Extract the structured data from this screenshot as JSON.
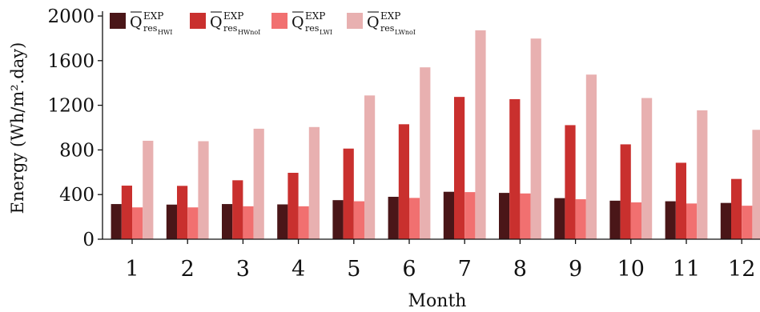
{
  "chart_data": {
    "type": "bar",
    "xlabel": "Month",
    "ylabel": "Energy (Wh/m².day)",
    "ylim": [
      0,
      2000
    ],
    "yticks": [
      0,
      400,
      800,
      1200,
      1600,
      2000
    ],
    "grid": false,
    "legend_position": "top-left",
    "categories": [
      "1",
      "2",
      "3",
      "4",
      "5",
      "6",
      "7",
      "8",
      "9",
      "10",
      "11",
      "12"
    ],
    "series": [
      {
        "name": "Q̄res,HWI EXP",
        "sub": "HWI",
        "color": "#4a1618",
        "values": [
          315,
          310,
          315,
          312,
          350,
          380,
          425,
          415,
          368,
          345,
          340,
          325
        ]
      },
      {
        "name": "Q̄res,HWnoI EXP",
        "sub": "HWnoI",
        "color": "#c9302e",
        "values": [
          480,
          478,
          528,
          595,
          812,
          1030,
          1275,
          1255,
          1022,
          850,
          685,
          540
        ]
      },
      {
        "name": "Q̄res,LWI EXP",
        "sub": "LWI",
        "color": "#f17070",
        "values": [
          285,
          285,
          295,
          295,
          340,
          370,
          422,
          410,
          358,
          330,
          320,
          300
        ]
      },
      {
        "name": "Q̄res,LWnoI EXP",
        "sub": "LWnoI",
        "color": "#e8b0b0",
        "values": [
          882,
          878,
          990,
          1005,
          1288,
          1540,
          1872,
          1798,
          1475,
          1265,
          1155,
          980
        ]
      }
    ]
  }
}
